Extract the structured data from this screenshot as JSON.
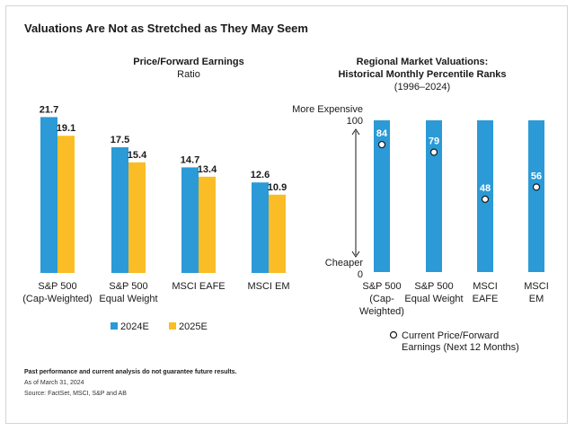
{
  "title": "Valuations Are Not as Stretched as They May Seem",
  "colors": {
    "blue": "#2b9ad6",
    "yellow": "#fbbd26",
    "text": "#1a1a1a"
  },
  "chart_data": [
    {
      "type": "bar",
      "title": "Price/Forward Earnings",
      "subtitle": "Ratio",
      "categories": [
        "S&P 500\n(Cap-Weighted)",
        "S&P 500\nEqual Weight",
        "MSCI EAFE",
        "MSCI EM"
      ],
      "series": [
        {
          "name": "2024E",
          "values": [
            21.7,
            17.5,
            14.7,
            12.6
          ]
        },
        {
          "name": "2025E",
          "values": [
            19.1,
            15.4,
            13.4,
            10.9
          ]
        }
      ],
      "ylim": [
        0,
        22
      ],
      "legend_position": "bottom"
    },
    {
      "type": "bar",
      "title": "Regional Market Valuations:\nHistorical Monthly Percentile Ranks",
      "subtitle": "(1996–2024)",
      "categories": [
        "S&P 500\n(Cap-\nWeighted)",
        "S&P 500\nEqual Weight",
        "MSCI\nEAFE",
        "MSCI\nEM"
      ],
      "range": [
        0,
        100
      ],
      "values": [
        84,
        79,
        48,
        56
      ],
      "axis_top_label": "More Expensive",
      "axis_bottom_label": "Cheaper",
      "tick_top": "100",
      "tick_bottom": "0",
      "legend": "Current Price/Forward\nEarnings (Next 12 Months)"
    }
  ],
  "footnotes": {
    "disclaimer": "Past performance and current analysis do not guarantee future results.",
    "date": "As of March 31, 2024",
    "source": "Source: FactSet, MSCI, S&P and AB"
  }
}
